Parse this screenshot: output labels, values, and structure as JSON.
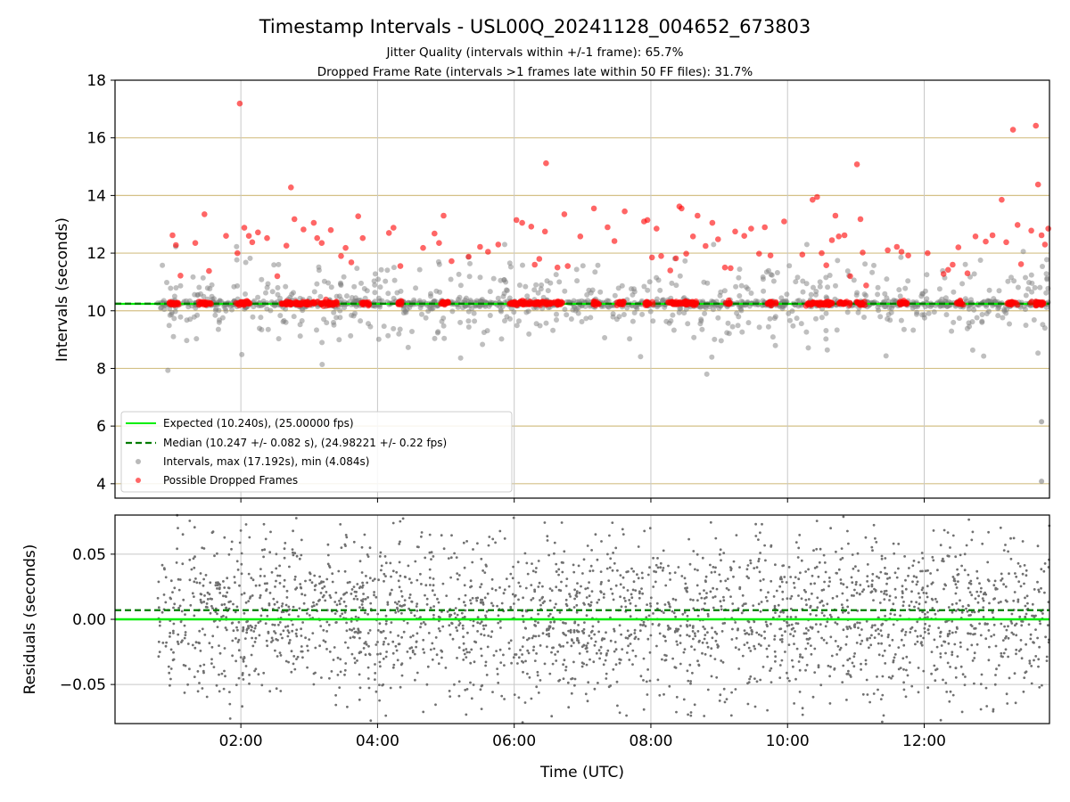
{
  "chart_data": [
    {
      "type": "scatter",
      "title": "Timestamp Intervals - USL00Q_20241128_004652_673803",
      "subtitle_lines": [
        "Jitter Quality (intervals within +/-1 frame): 65.7%",
        "Dropped Frame Rate (intervals >1 frames late within 50 FF files): 31.7%"
      ],
      "xlabel": "",
      "ylabel": "Intervals (seconds)",
      "xlim": [
        "00:09:30",
        "13:50:00"
      ],
      "ylim": [
        3.5,
        18
      ],
      "xticks": [
        "02:00",
        "04:00",
        "06:00",
        "08:00",
        "10:00",
        "12:00"
      ],
      "yticks": [
        4,
        6,
        8,
        10,
        12,
        14,
        16,
        18
      ],
      "grid": "both",
      "legend_position": "lower-left",
      "colors": {
        "expected": "#00ee00",
        "median": "#007a00",
        "intervals": "#808080",
        "dropped": "#ff0000",
        "hgrid": "#d4c187",
        "vgrid": "#c8c8c8"
      },
      "series": [
        {
          "name": "Expected (10.240s), (25.00000 fps)",
          "kind": "hline",
          "y": 10.24
        },
        {
          "name": "Median (10.247 +/- 0.082 s), (24.98221 +/- 0.22 fps)",
          "kind": "hline-dashed",
          "y": 10.247
        },
        {
          "name": "Intervals, max (17.192s), min (4.084s)",
          "kind": "scatter",
          "data_range": [
            "00:47",
            "13:49"
          ],
          "max": 17.192,
          "min": 4.084
        },
        {
          "name": "Possible Dropped Frames",
          "kind": "scatter",
          "points": [
            [
              "01:00",
              12.62
            ],
            [
              "01:03",
              12.28
            ],
            [
              "01:07",
              11.22
            ],
            [
              "01:20",
              12.35
            ],
            [
              "01:28",
              13.35
            ],
            [
              "01:32",
              11.38
            ],
            [
              "01:47",
              12.6
            ],
            [
              "01:57",
              12.0
            ],
            [
              "02:07",
              12.6
            ],
            [
              "01:59",
              17.19
            ],
            [
              "02:03",
              12.88
            ],
            [
              "02:10",
              12.38
            ],
            [
              "02:15",
              12.72
            ],
            [
              "02:23",
              12.52
            ],
            [
              "02:32",
              11.2
            ],
            [
              "02:40",
              12.26
            ],
            [
              "02:44",
              14.28
            ],
            [
              "02:47",
              13.18
            ],
            [
              "02:55",
              12.82
            ],
            [
              "03:04",
              13.05
            ],
            [
              "03:07",
              12.52
            ],
            [
              "03:11",
              12.35
            ],
            [
              "03:19",
              12.8
            ],
            [
              "03:28",
              11.9
            ],
            [
              "03:32",
              12.18
            ],
            [
              "03:37",
              11.68
            ],
            [
              "03:43",
              13.28
            ],
            [
              "03:47",
              12.52
            ],
            [
              "04:10",
              12.7
            ],
            [
              "04:14",
              12.88
            ],
            [
              "04:20",
              11.55
            ],
            [
              "04:40",
              12.18
            ],
            [
              "04:50",
              12.68
            ],
            [
              "04:54",
              12.35
            ],
            [
              "04:58",
              13.3
            ],
            [
              "05:05",
              11.72
            ],
            [
              "05:20",
              11.88
            ],
            [
              "05:30",
              12.22
            ],
            [
              "05:37",
              12.05
            ],
            [
              "05:46",
              12.3
            ],
            [
              "06:02",
              13.15
            ],
            [
              "06:07",
              13.05
            ],
            [
              "06:15",
              12.92
            ],
            [
              "06:18",
              11.6
            ],
            [
              "06:22",
              11.8
            ],
            [
              "06:27",
              12.75
            ],
            [
              "06:28",
              15.12
            ],
            [
              "06:38",
              11.5
            ],
            [
              "06:44",
              13.35
            ],
            [
              "06:47",
              11.55
            ],
            [
              "06:58",
              12.58
            ],
            [
              "07:10",
              13.55
            ],
            [
              "07:22",
              12.9
            ],
            [
              "07:28",
              12.42
            ],
            [
              "07:37",
              13.45
            ],
            [
              "07:54",
              13.1
            ],
            [
              "07:57",
              13.15
            ],
            [
              "08:01",
              11.85
            ],
            [
              "08:05",
              12.85
            ],
            [
              "08:09",
              11.9
            ],
            [
              "08:17",
              11.4
            ],
            [
              "08:22",
              11.82
            ],
            [
              "08:25",
              13.62
            ],
            [
              "08:27",
              13.55
            ],
            [
              "08:31",
              11.98
            ],
            [
              "08:37",
              12.58
            ],
            [
              "08:41",
              13.3
            ],
            [
              "08:48",
              12.25
            ],
            [
              "08:54",
              13.05
            ],
            [
              "08:59",
              12.48
            ],
            [
              "09:05",
              11.5
            ],
            [
              "09:10",
              11.48
            ],
            [
              "09:14",
              12.75
            ],
            [
              "09:22",
              12.6
            ],
            [
              "09:28",
              12.85
            ],
            [
              "09:35",
              11.98
            ],
            [
              "09:40",
              12.9
            ],
            [
              "09:45",
              11.92
            ],
            [
              "09:57",
              13.1
            ],
            [
              "10:13",
              11.95
            ],
            [
              "10:22",
              13.85
            ],
            [
              "10:26",
              13.95
            ],
            [
              "10:30",
              12.0
            ],
            [
              "10:34",
              11.58
            ],
            [
              "10:39",
              12.45
            ],
            [
              "10:42",
              13.3
            ],
            [
              "10:45",
              12.58
            ],
            [
              "10:50",
              12.62
            ],
            [
              "10:55",
              11.2
            ],
            [
              "11:01",
              15.08
            ],
            [
              "11:04",
              13.18
            ],
            [
              "11:06",
              12.02
            ],
            [
              "11:09",
              10.88
            ],
            [
              "11:28",
              12.1
            ],
            [
              "11:36",
              12.22
            ],
            [
              "11:40",
              12.05
            ],
            [
              "11:46",
              11.92
            ],
            [
              "12:03",
              12.0
            ],
            [
              "12:17",
              11.28
            ],
            [
              "12:21",
              11.42
            ],
            [
              "12:25",
              11.6
            ],
            [
              "12:30",
              12.2
            ],
            [
              "12:38",
              11.3
            ],
            [
              "12:45",
              12.58
            ],
            [
              "12:54",
              12.4
            ],
            [
              "13:00",
              12.62
            ],
            [
              "13:08",
              13.85
            ],
            [
              "13:12",
              12.38
            ],
            [
              "13:18",
              16.28
            ],
            [
              "13:22",
              12.98
            ],
            [
              "13:25",
              11.62
            ],
            [
              "13:34",
              12.78
            ],
            [
              "13:38",
              16.42
            ],
            [
              "13:40",
              14.38
            ],
            [
              "13:43",
              12.62
            ],
            [
              "13:46",
              12.3
            ],
            [
              "13:49",
              12.85
            ]
          ]
        }
      ]
    },
    {
      "type": "scatter",
      "title": "",
      "xlabel": "Time (UTC)",
      "ylabel": "Residuals (seconds)",
      "xlim": [
        "00:09:30",
        "13:50:00"
      ],
      "ylim": [
        -0.08,
        0.08
      ],
      "xticks": [
        "02:00",
        "04:00",
        "06:00",
        "08:00",
        "10:00",
        "12:00"
      ],
      "yticks": [
        0.05,
        0.0,
        -0.05
      ],
      "ytick_labels": [
        "0.05",
        "0.00",
        "−0.05"
      ],
      "grid": "both",
      "colors": {
        "zero": "#00ee00",
        "median": "#007a00",
        "points": "#707070",
        "grid": "#c8c8c8"
      },
      "series": [
        {
          "name": "",
          "kind": "hline",
          "y": 0.0
        },
        {
          "name": "",
          "kind": "hline-dashed",
          "y": 0.007
        },
        {
          "name": "",
          "kind": "scatter",
          "data_range": [
            "00:47",
            "13:50"
          ],
          "spread": [
            -0.08,
            0.08
          ]
        }
      ]
    }
  ]
}
